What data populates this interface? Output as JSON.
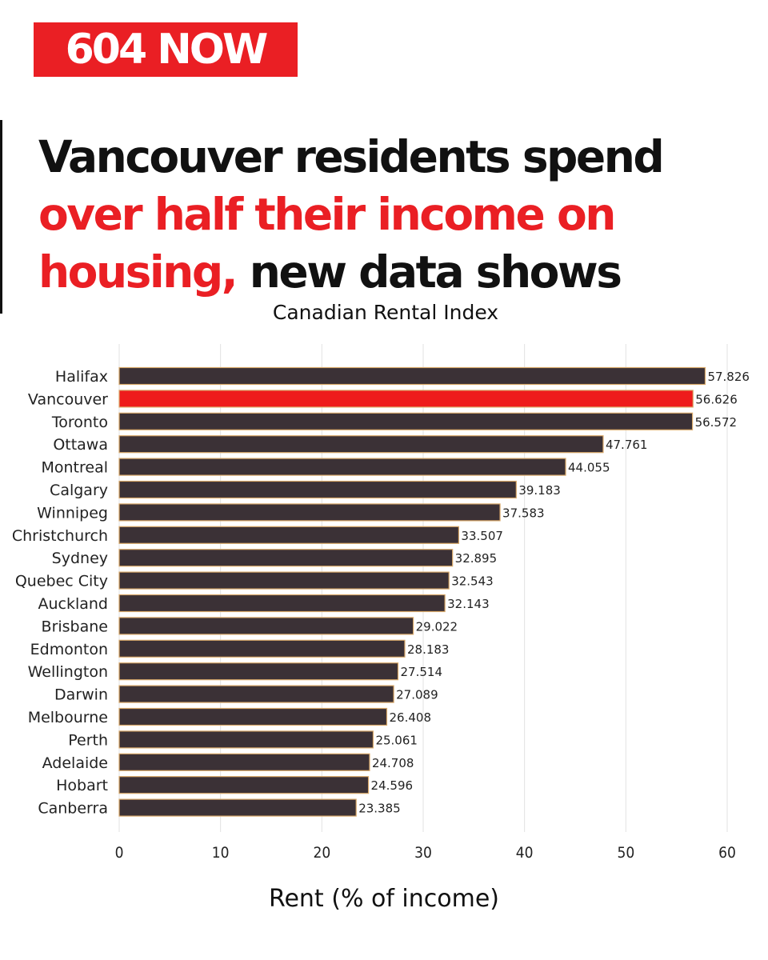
{
  "brand": {
    "logo_text": "604 NOW"
  },
  "headline": {
    "line1": "Vancouver residents spend",
    "line2_red": "over half their income on",
    "line3_red": "housing,",
    "line3_black": " new data shows"
  },
  "colors": {
    "brand_red": "#ea1f24",
    "bar_default": "#3b3136",
    "bar_highlight": "#ee1c1c",
    "gridline": "#e2e2e2"
  },
  "chart_data": {
    "type": "bar",
    "orientation": "horizontal",
    "title": "Canadian Rental Index",
    "xlabel": "Rent (% of income)",
    "ylabel": "",
    "xlim": [
      0,
      60
    ],
    "xticks": [
      0,
      10,
      20,
      30,
      40,
      50,
      60
    ],
    "grid": true,
    "highlighted_category": "Vancouver",
    "categories": [
      "Halifax",
      "Vancouver",
      "Toronto",
      "Ottawa",
      "Montreal",
      "Calgary",
      "Winnipeg",
      "Christchurch",
      "Sydney",
      "Quebec City",
      "Auckland",
      "Brisbane",
      "Edmonton",
      "Wellington",
      "Darwin",
      "Melbourne",
      "Perth",
      "Adelaide",
      "Hobart",
      "Canberra"
    ],
    "values": [
      57.826,
      56.626,
      56.572,
      47.761,
      44.055,
      39.183,
      37.583,
      33.507,
      32.895,
      32.543,
      32.143,
      29.022,
      28.183,
      27.514,
      27.089,
      26.408,
      25.061,
      24.708,
      24.596,
      23.385
    ],
    "value_labels": [
      "57.826",
      "56.626",
      "56.572",
      "47.761",
      "44.055",
      "39.183",
      "37.583",
      "33.507",
      "32.895",
      "32.543",
      "32.143",
      "29.022",
      "28.183",
      "27.514",
      "27.089",
      "26.408",
      "25.061",
      "24.708",
      "24.596",
      "23.385"
    ]
  }
}
